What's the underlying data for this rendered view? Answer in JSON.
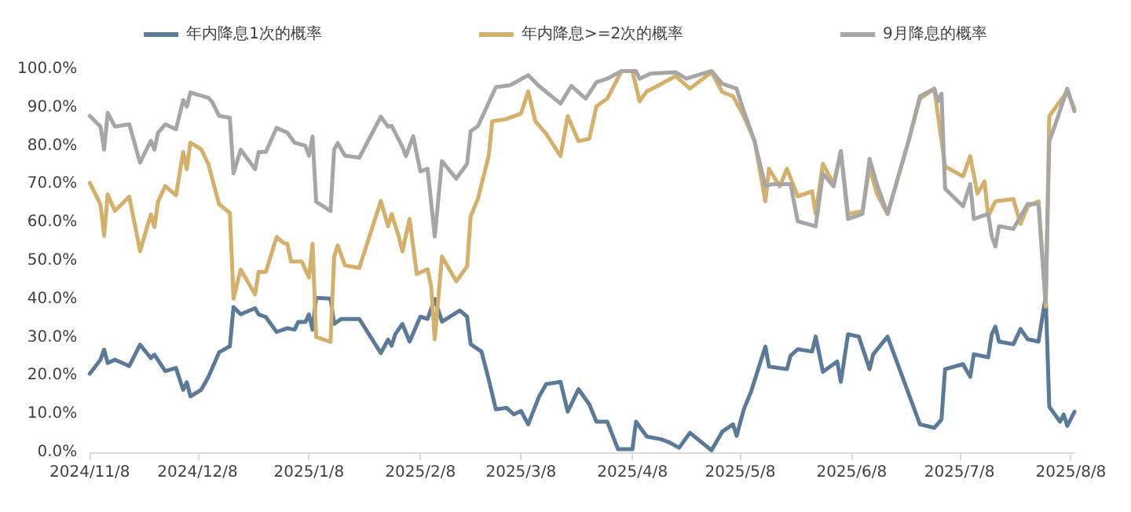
{
  "chart_data": {
    "type": "line",
    "legend": "top",
    "grid": false,
    "marker": "none",
    "line_style": "solid",
    "xlim": [
      "2024-11-08",
      "2025-08-09"
    ],
    "xticks": [
      {
        "value": "2024-11-08",
        "label": "2024/11/8"
      },
      {
        "value": "2024-12-08",
        "label": "2024/12/8"
      },
      {
        "value": "2025-01-08",
        "label": "2025/1/8"
      },
      {
        "value": "2025-02-08",
        "label": "2025/2/8"
      },
      {
        "value": "2025-03-08",
        "label": "2025/3/8"
      },
      {
        "value": "2025-04-08",
        "label": "2025/4/8"
      },
      {
        "value": "2025-05-08",
        "label": "2025/5/8"
      },
      {
        "value": "2025-06-08",
        "label": "2025/6/8"
      },
      {
        "value": "2025-07-08",
        "label": "2025/7/8"
      },
      {
        "value": "2025-08-08",
        "label": "2025/8/8"
      }
    ],
    "ylim": [
      0,
      100
    ],
    "yticks": [
      {
        "value": 0,
        "label": "0.0%"
      },
      {
        "value": 10,
        "label": "10.0%"
      },
      {
        "value": 20,
        "label": "20.0%"
      },
      {
        "value": 30,
        "label": "30.0%"
      },
      {
        "value": 40,
        "label": "40.0%"
      },
      {
        "value": 50,
        "label": "50.0%"
      },
      {
        "value": 60,
        "label": "60.0%"
      },
      {
        "value": 70,
        "label": "70.0%"
      },
      {
        "value": 80,
        "label": "80.0%"
      },
      {
        "value": 90,
        "label": "90.0%"
      },
      {
        "value": 100,
        "label": "100.0%"
      }
    ],
    "series": [
      {
        "name": "年内降息1次的概率",
        "color": "#5b7a99",
        "x": [
          "2024-11-08",
          "2024-11-11",
          "2024-11-12",
          "2024-11-13",
          "2024-11-15",
          "2024-11-19",
          "2024-11-22",
          "2024-11-25",
          "2024-11-26",
          "2024-11-29",
          "2024-12-02",
          "2024-12-04",
          "2024-12-05",
          "2024-12-06",
          "2024-12-09",
          "2024-12-11",
          "2024-12-14",
          "2024-12-17",
          "2024-12-18",
          "2024-12-20",
          "2024-12-24",
          "2024-12-25",
          "2024-12-27",
          "2024-12-30",
          "2025-01-02",
          "2025-01-04",
          "2025-01-05",
          "2025-01-07",
          "2025-01-08",
          "2025-01-09",
          "2025-01-10",
          "2025-01-14",
          "2025-01-15",
          "2025-01-17",
          "2025-01-22",
          "2025-01-28",
          "2025-01-30",
          "2025-01-31",
          "2025-02-01",
          "2025-02-03",
          "2025-02-05",
          "2025-02-08",
          "2025-02-10",
          "2025-02-12",
          "2025-02-14",
          "2025-02-19",
          "2025-02-21",
          "2025-02-22",
          "2025-02-25",
          "2025-02-27",
          "2025-03-01",
          "2025-03-04",
          "2025-03-06",
          "2025-03-08",
          "2025-03-10",
          "2025-03-13",
          "2025-03-15",
          "2025-03-19",
          "2025-03-21",
          "2025-03-24",
          "2025-03-27",
          "2025-03-29",
          "2025-04-01",
          "2025-04-04",
          "2025-04-08",
          "2025-04-09",
          "2025-04-12",
          "2025-04-16",
          "2025-04-18",
          "2025-04-21",
          "2025-04-24",
          "2025-04-30",
          "2025-05-03",
          "2025-05-06",
          "2025-05-07",
          "2025-05-09",
          "2025-05-11",
          "2025-05-15",
          "2025-05-16",
          "2025-05-21",
          "2025-05-22",
          "2025-05-24",
          "2025-05-28",
          "2025-05-29",
          "2025-05-31",
          "2025-06-04",
          "2025-06-05",
          "2025-06-07",
          "2025-06-10",
          "2025-06-13",
          "2025-06-14",
          "2025-06-18",
          "2025-06-27",
          "2025-07-01",
          "2025-07-03",
          "2025-07-04",
          "2025-07-09",
          "2025-07-11",
          "2025-07-12",
          "2025-07-16",
          "2025-07-17",
          "2025-07-18",
          "2025-07-19",
          "2025-07-23",
          "2025-07-25",
          "2025-07-27",
          "2025-07-30",
          "2025-08-01",
          "2025-08-02",
          "2025-08-05",
          "2025-08-06",
          "2025-08-07",
          "2025-08-09"
        ],
        "values": [
          20.5,
          24.2,
          26.8,
          23.3,
          24.2,
          22.5,
          28.1,
          24.6,
          25.5,
          21.2,
          22,
          16.3,
          18.3,
          14.6,
          16.3,
          19.6,
          26.1,
          27.7,
          37.9,
          36,
          37.6,
          36,
          35.3,
          31.4,
          32.4,
          32,
          34,
          34,
          36,
          32,
          40.3,
          40.1,
          33.5,
          34.8,
          34.8,
          25.9,
          29.4,
          27.8,
          30.8,
          33.5,
          28.9,
          35.4,
          34.8,
          40,
          34.1,
          37,
          35.4,
          28.2,
          26.3,
          19.1,
          11.2,
          11.6,
          9.9,
          10.8,
          7.3,
          14.5,
          17.8,
          18.4,
          10.6,
          16.5,
          12.5,
          8,
          8,
          0.8,
          0.8,
          8,
          4.1,
          3.4,
          2.7,
          1.2,
          5.1,
          0.5,
          5.4,
          7.3,
          4.3,
          11.2,
          15.8,
          27.6,
          22.4,
          21.7,
          25.2,
          26.9,
          26.3,
          30.2,
          21,
          23.7,
          18.4,
          30.8,
          30.2,
          21.7,
          25.6,
          30.2,
          7.3,
          6.4,
          8.6,
          21.7,
          23,
          19.7,
          25.6,
          24.8,
          30.8,
          32.8,
          28.9,
          28.2,
          32.2,
          29.5,
          28.9,
          40.7,
          11.9,
          8,
          9.9,
          6.9,
          10.6
        ]
      },
      {
        "name": "年内降息>=2次的概率",
        "color": "#d4b06a",
        "x": [
          "2024-11-08",
          "2024-11-11",
          "2024-11-12",
          "2024-11-13",
          "2024-11-15",
          "2024-11-19",
          "2024-11-22",
          "2024-11-25",
          "2024-11-26",
          "2024-11-27",
          "2024-11-29",
          "2024-12-02",
          "2024-12-04",
          "2024-12-05",
          "2024-12-06",
          "2024-12-09",
          "2024-12-11",
          "2024-12-14",
          "2024-12-17",
          "2024-12-18",
          "2024-12-20",
          "2024-12-24",
          "2024-12-25",
          "2024-12-27",
          "2024-12-30",
          "2025-01-01",
          "2025-01-02",
          "2025-01-03",
          "2025-01-06",
          "2025-01-08",
          "2025-01-09",
          "2025-01-10",
          "2025-01-14",
          "2025-01-15",
          "2025-01-16",
          "2025-01-18",
          "2025-01-22",
          "2025-01-28",
          "2025-01-30",
          "2025-01-31",
          "2025-02-02",
          "2025-02-03",
          "2025-02-05",
          "2025-02-07",
          "2025-02-10",
          "2025-02-11",
          "2025-02-12",
          "2025-02-14",
          "2025-02-18",
          "2025-02-21",
          "2025-02-22",
          "2025-02-24",
          "2025-02-27",
          "2025-02-28",
          "2025-03-04",
          "2025-03-08",
          "2025-03-10",
          "2025-03-12",
          "2025-03-15",
          "2025-03-19",
          "2025-03-21",
          "2025-03-24",
          "2025-03-27",
          "2025-03-29",
          "2025-04-01",
          "2025-04-05",
          "2025-04-08",
          "2025-04-10",
          "2025-04-12",
          "2025-04-15",
          "2025-04-20",
          "2025-04-24",
          "2025-04-30",
          "2025-05-03",
          "2025-05-06",
          "2025-05-09",
          "2025-05-12",
          "2025-05-15",
          "2025-05-16",
          "2025-05-19",
          "2025-05-21",
          "2025-05-24",
          "2025-05-28",
          "2025-05-29",
          "2025-05-31",
          "2025-06-03",
          "2025-06-05",
          "2025-06-07",
          "2025-06-11",
          "2025-06-13",
          "2025-06-15",
          "2025-06-18",
          "2025-06-24",
          "2025-06-27",
          "2025-07-01",
          "2025-07-04",
          "2025-07-09",
          "2025-07-11",
          "2025-07-13",
          "2025-07-15",
          "2025-07-16",
          "2025-07-18",
          "2025-07-23",
          "2025-07-25",
          "2025-07-27",
          "2025-07-30",
          "2025-08-01",
          "2025-08-02",
          "2025-08-06",
          "2025-08-07",
          "2025-08-09"
        ],
        "values": [
          70.3,
          64.7,
          56.5,
          67.3,
          63,
          66.7,
          52.5,
          62.1,
          58.8,
          65.4,
          69.5,
          67.1,
          78.4,
          73.9,
          80.8,
          79.1,
          75.2,
          64.7,
          62.5,
          40.1,
          47.7,
          41.2,
          47.1,
          47.1,
          56.2,
          54.6,
          54.4,
          49.8,
          49.8,
          45.6,
          54.4,
          30.1,
          28.8,
          51,
          54,
          48.8,
          48.1,
          65.6,
          59,
          62.2,
          56.3,
          52.4,
          60.9,
          46.5,
          47.8,
          43.3,
          29.5,
          51.1,
          44.6,
          48.5,
          61.6,
          66.1,
          77.3,
          86.4,
          87,
          88.4,
          94.2,
          86.4,
          83.1,
          77.3,
          87.7,
          81.2,
          81.8,
          90.3,
          92.3,
          99.5,
          99.5,
          91.6,
          94.2,
          95.6,
          98.2,
          94.9,
          99.2,
          94,
          92.9,
          87.7,
          81.2,
          65.5,
          74,
          69.4,
          74,
          66.8,
          68.1,
          62.2,
          75.3,
          70,
          78.6,
          62.2,
          62.9,
          74.5,
          67.5,
          62.2,
          81.8,
          92.3,
          94.9,
          74.6,
          72,
          77.3,
          67.5,
          70.7,
          61.6,
          65.5,
          66.1,
          59.6,
          64.2,
          65.5,
          38,
          87.7,
          92.9,
          94.2,
          89.7
        ]
      },
      {
        "name": "9月降息的概率",
        "color": "#a6a6a6",
        "x": [
          "2024-11-08",
          "2024-11-11",
          "2024-11-12",
          "2024-11-13",
          "2024-11-15",
          "2024-11-19",
          "2024-11-22",
          "2024-11-25",
          "2024-11-26",
          "2024-11-27",
          "2024-11-29",
          "2024-12-02",
          "2024-12-04",
          "2024-12-05",
          "2024-12-06",
          "2024-12-11",
          "2024-12-12",
          "2024-12-14",
          "2024-12-17",
          "2024-12-18",
          "2024-12-20",
          "2024-12-24",
          "2024-12-25",
          "2024-12-27",
          "2024-12-30",
          "2025-01-02",
          "2025-01-04",
          "2025-01-07",
          "2025-01-08",
          "2025-01-09",
          "2025-01-10",
          "2025-01-14",
          "2025-01-15",
          "2025-01-16",
          "2025-01-18",
          "2025-01-22",
          "2025-01-28",
          "2025-01-30",
          "2025-01-31",
          "2025-02-03",
          "2025-02-04",
          "2025-02-06",
          "2025-02-08",
          "2025-02-10",
          "2025-02-12",
          "2025-02-14",
          "2025-02-18",
          "2025-02-21",
          "2025-02-22",
          "2025-02-24",
          "2025-03-01",
          "2025-03-05",
          "2025-03-10",
          "2025-03-13",
          "2025-03-19",
          "2025-03-22",
          "2025-03-26",
          "2025-03-29",
          "2025-04-01",
          "2025-04-05",
          "2025-04-09",
          "2025-04-10",
          "2025-04-13",
          "2025-04-20",
          "2025-04-23",
          "2025-04-30",
          "2025-05-03",
          "2025-05-07",
          "2025-05-09",
          "2025-05-12",
          "2025-05-15",
          "2025-05-17",
          "2025-05-22",
          "2025-05-24",
          "2025-05-29",
          "2025-05-31",
          "2025-06-03",
          "2025-06-05",
          "2025-06-07",
          "2025-06-11",
          "2025-06-13",
          "2025-06-15",
          "2025-06-18",
          "2025-06-24",
          "2025-06-27",
          "2025-07-01",
          "2025-07-02",
          "2025-07-03",
          "2025-07-04",
          "2025-07-09",
          "2025-07-11",
          "2025-07-12",
          "2025-07-16",
          "2025-07-17",
          "2025-07-18",
          "2025-07-19",
          "2025-07-23",
          "2025-07-27",
          "2025-07-30",
          "2025-08-01",
          "2025-08-02",
          "2025-08-04",
          "2025-08-07",
          "2025-08-09"
        ],
        "values": [
          87.8,
          85,
          79,
          88.6,
          85,
          85.6,
          75.6,
          81.3,
          79,
          83.4,
          85.6,
          84.3,
          91.9,
          90.2,
          93.9,
          92.5,
          91.5,
          87.8,
          87.3,
          72.8,
          79,
          73.9,
          78.4,
          78.4,
          84.7,
          83.4,
          80.8,
          80,
          77.4,
          82.4,
          65.4,
          63,
          79,
          80.7,
          77.4,
          76.9,
          87.6,
          85,
          85.2,
          79.7,
          77.3,
          82.5,
          73.3,
          74,
          56.3,
          76,
          71.4,
          75.3,
          83.8,
          85.1,
          95.3,
          95.8,
          98.4,
          95.6,
          91,
          95.6,
          92.3,
          96.6,
          97.5,
          99.5,
          99.5,
          97.5,
          98.8,
          99.2,
          97.5,
          99.5,
          96.2,
          94.9,
          89,
          81.2,
          69.4,
          70,
          70,
          60.3,
          59,
          72.7,
          69.4,
          78.6,
          60.9,
          62.2,
          76.6,
          70,
          62.2,
          81.8,
          92.9,
          94.9,
          91.6,
          93.6,
          68.8,
          64.2,
          70,
          60.9,
          62.2,
          56.3,
          53.7,
          59,
          58.3,
          64.8,
          64.8,
          39.3,
          81.2,
          86.4,
          94.9,
          89
        ]
      }
    ]
  }
}
